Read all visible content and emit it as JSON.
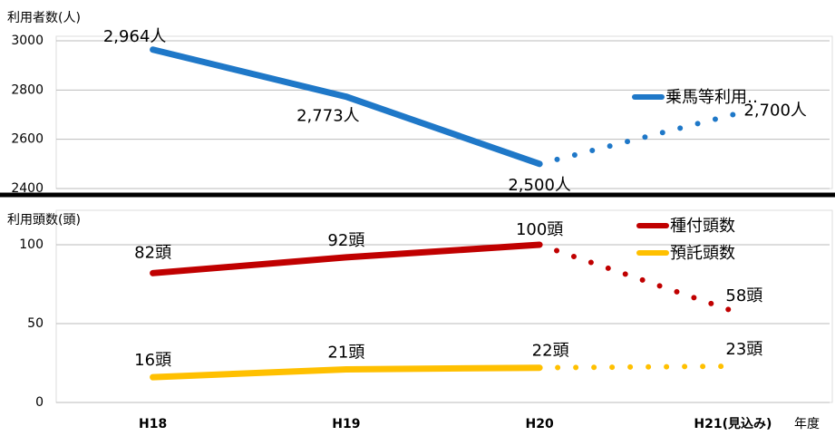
{
  "chart_data": [
    {
      "type": "line",
      "y_label": "利用者数(人)",
      "ylim": [
        2400,
        3000
      ],
      "yticks": [
        2400,
        2600,
        2800,
        3000
      ],
      "grid": true,
      "forecast_from": 2,
      "series": [
        {
          "name": "乗馬等利用‥",
          "color": "#1f78c8",
          "values": [
            2964,
            2773,
            2500,
            2700
          ],
          "value_labels": [
            "2,964人",
            "2,773人",
            "2,500人",
            "2,700人"
          ]
        }
      ]
    },
    {
      "type": "line",
      "y_label": "利用頭数(頭)",
      "x_label": "年度",
      "categories": [
        "H18",
        "H19",
        "H20",
        "H21(見込み)"
      ],
      "ylim": [
        0,
        100
      ],
      "yticks": [
        0,
        50,
        100
      ],
      "grid": true,
      "forecast_from": 2,
      "series": [
        {
          "name": "種付頭数",
          "color": "#c00000",
          "values": [
            82,
            92,
            100,
            58
          ],
          "value_labels": [
            "82頭",
            "92頭",
            "100頭",
            "58頭"
          ]
        },
        {
          "name": "預託頭数",
          "color": "#ffc000",
          "values": [
            16,
            21,
            22,
            23
          ],
          "value_labels": [
            "16頭",
            "21頭",
            "22頭",
            "23頭"
          ]
        }
      ]
    }
  ]
}
